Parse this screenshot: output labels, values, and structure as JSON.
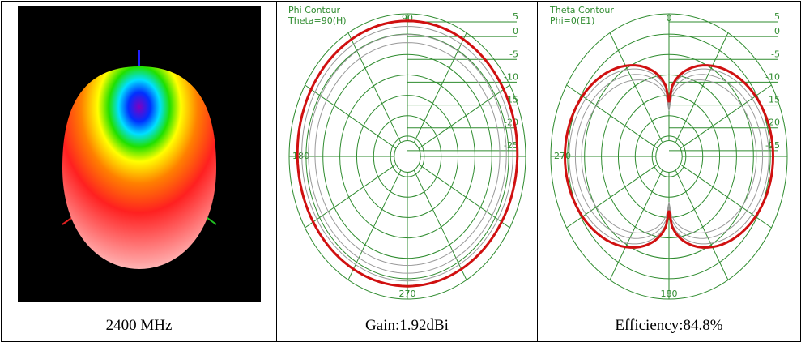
{
  "cells": [
    {
      "caption": "2400 MHz"
    },
    {
      "title": "Phi Contour",
      "subtitle": "Theta=90(H)",
      "angle_labels": [
        "90",
        "180",
        "270"
      ],
      "ring_labels": [
        "5",
        "0",
        "-5",
        "-10",
        "-15",
        "-20",
        "-25"
      ],
      "caption": "Gain:1.92dBi"
    },
    {
      "title": "Theta Contour",
      "subtitle": "Phi=0(E1)",
      "angle_labels": [
        "0",
        "270",
        "180"
      ],
      "ring_labels": [
        "5",
        "0",
        "-5",
        "-10",
        "-15",
        "-20",
        "-25"
      ],
      "caption": "Efficiency:84.8%"
    }
  ]
}
